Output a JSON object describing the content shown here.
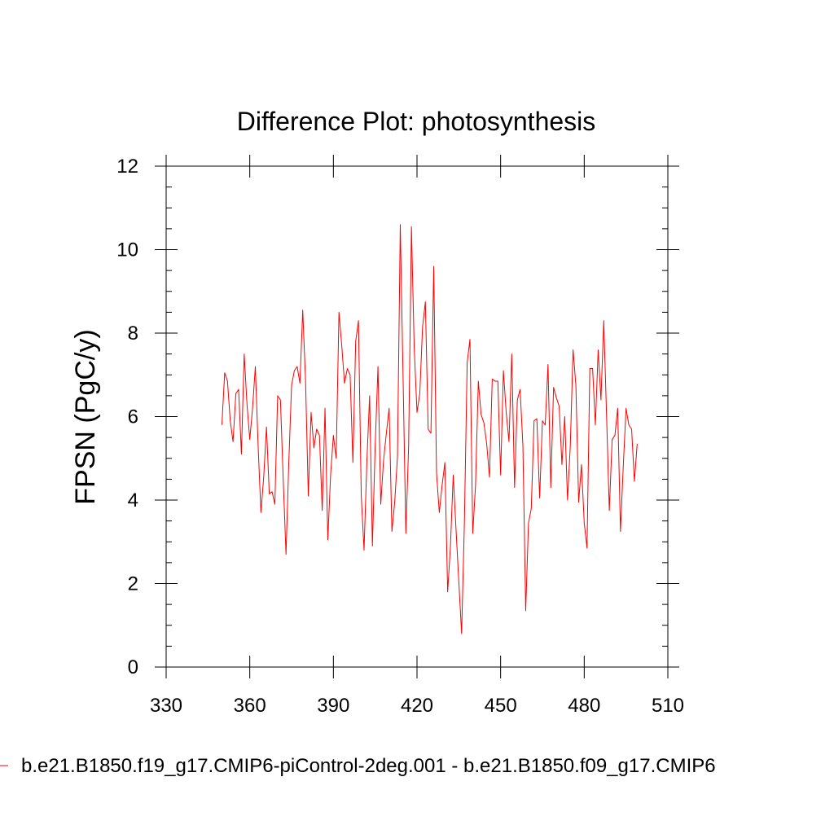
{
  "chart_data": {
    "type": "line",
    "title": "Difference Plot: photosynthesis",
    "xlabel": "",
    "ylabel": "FPSN  (PgC/y)",
    "xlim": [
      330,
      510
    ],
    "ylim": [
      0,
      12
    ],
    "x_ticks": [
      "330",
      "360",
      "390",
      "420",
      "450",
      "480",
      "510"
    ],
    "y_ticks": [
      "0",
      "2",
      "4",
      "6",
      "8",
      "10",
      "12"
    ],
    "grid": false,
    "series": [
      {
        "name": "b.e21.B1850.f19_g17.CMIP6-piControl-2deg.001 - b.e21.B1850.f09_g17.CMIP6",
        "color": "#ff0000",
        "x_start": 350,
        "x_step": 1,
        "values": [
          5.8,
          7.05,
          6.85,
          5.9,
          5.4,
          6.55,
          6.65,
          5.1,
          7.5,
          6.3,
          5.45,
          6.2,
          7.2,
          5.3,
          3.7,
          4.55,
          5.75,
          4.15,
          4.2,
          3.9,
          6.5,
          6.4,
          4.5,
          2.7,
          4.9,
          6.75,
          7.1,
          7.2,
          6.8,
          8.55,
          6.9,
          4.1,
          6.1,
          5.25,
          5.7,
          5.55,
          3.75,
          6.2,
          3.05,
          4.6,
          5.55,
          5.0,
          8.5,
          7.7,
          6.8,
          7.15,
          7.0,
          4.9,
          7.8,
          8.3,
          4.1,
          2.8,
          4.9,
          6.5,
          2.9,
          5.3,
          7.2,
          3.9,
          4.95,
          5.6,
          6.2,
          3.25,
          3.95,
          5.05,
          10.6,
          6.95,
          3.2,
          5.3,
          10.55,
          7.65,
          6.1,
          6.55,
          8.15,
          8.75,
          5.7,
          5.6,
          9.6,
          4.65,
          3.7,
          4.35,
          4.9,
          1.8,
          2.9,
          4.6,
          3.3,
          2.05,
          0.8,
          3.45,
          7.3,
          7.85,
          3.2,
          4.35,
          6.85,
          6.05,
          5.85,
          5.35,
          4.55,
          6.9,
          6.85,
          6.85,
          4.6,
          7.1,
          6.1,
          5.4,
          7.5,
          4.3,
          6.4,
          6.65,
          5.3,
          1.35,
          3.45,
          3.8,
          5.9,
          5.95,
          4.05,
          5.9,
          5.8,
          7.25,
          4.3,
          6.7,
          6.45,
          6.25,
          4.85,
          6.0,
          4.0,
          5.3,
          7.6,
          6.75,
          3.95,
          4.85,
          3.45,
          2.85,
          7.15,
          7.15,
          5.8,
          7.6,
          6.4,
          8.3,
          6.05,
          3.75,
          5.45,
          5.55,
          6.2,
          3.25,
          4.8,
          6.2,
          5.8,
          5.7,
          4.45,
          5.35
        ]
      }
    ]
  }
}
